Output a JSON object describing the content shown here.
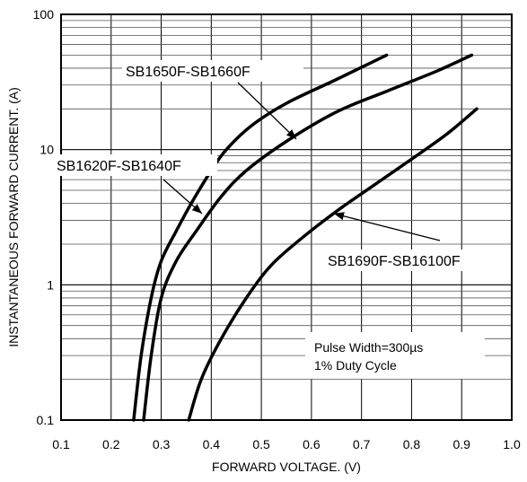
{
  "chart_data": {
    "type": "line",
    "title": "",
    "xlabel": "FORWARD VOLTAGE. (V)",
    "ylabel": "INSTANTANEOUS FORWARD CURRENT. (A)",
    "xlim": [
      0.1,
      1.0
    ],
    "ylim": [
      0.1,
      100
    ],
    "yscale": "log",
    "grid": true,
    "x_ticks": [
      "0.1",
      "0.2",
      "0.3",
      "0.4",
      "0.5",
      "0.6",
      "0.7",
      "0.8",
      "0.9",
      "1.0"
    ],
    "y_ticks": [
      "0.1",
      "1",
      "10",
      "100"
    ],
    "series": [
      {
        "name": "SB1620F-SB1640F",
        "x": [
          0.245,
          0.26,
          0.28,
          0.3,
          0.33,
          0.36,
          0.4,
          0.43,
          0.48,
          0.55,
          0.65,
          0.75
        ],
        "y": [
          0.1,
          0.3,
          0.8,
          1.5,
          2.5,
          4.0,
          7.0,
          10.0,
          15.0,
          22.0,
          33.0,
          50.0
        ]
      },
      {
        "name": "SB1650F-SB1660F",
        "x": [
          0.265,
          0.28,
          0.3,
          0.33,
          0.37,
          0.42,
          0.47,
          0.55,
          0.65,
          0.75,
          0.85,
          0.92
        ],
        "y": [
          0.1,
          0.3,
          0.8,
          1.5,
          2.5,
          4.5,
          7.0,
          11.5,
          19.0,
          27.0,
          38.0,
          50.0
        ]
      },
      {
        "name": "SB1690F-SB16100F",
        "x": [
          0.355,
          0.38,
          0.42,
          0.47,
          0.52,
          0.58,
          0.65,
          0.72,
          0.8,
          0.87,
          0.93
        ],
        "y": [
          0.1,
          0.2,
          0.4,
          0.8,
          1.4,
          2.2,
          3.5,
          5.3,
          8.5,
          13.0,
          20.0
        ]
      }
    ],
    "annotations": [
      "Pulse Width=300µs",
      "1% Duty Cycle"
    ]
  }
}
